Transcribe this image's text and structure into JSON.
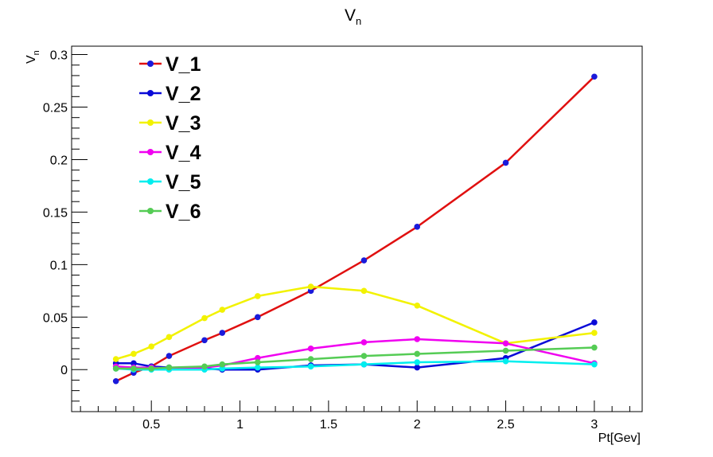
{
  "chart_data": {
    "type": "line",
    "title": "V",
    "title_sub": "n",
    "xlabel": "Pt[Gev]",
    "ylabel": "V",
    "ylabel_sub": "n",
    "xlim": [
      0.05,
      3.27
    ],
    "ylim": [
      -0.04,
      0.308
    ],
    "xticks": [
      0.5,
      1,
      1.5,
      2,
      2.5,
      3
    ],
    "xtick_labels": [
      "0.5",
      "1",
      "1.5",
      "2",
      "2.5",
      "3"
    ],
    "yticks": [
      0,
      0.05,
      0.1,
      0.15,
      0.2,
      0.25,
      0.3
    ],
    "ytick_labels": [
      "0",
      "0.05",
      "0.1",
      "0.15",
      "0.2",
      "0.25",
      "0.3"
    ],
    "grid": false,
    "legend_position": "top-left",
    "x": [
      0.3,
      0.4,
      0.5,
      0.6,
      0.8,
      0.9,
      1.1,
      1.4,
      1.7,
      2.0,
      2.5,
      3.0
    ],
    "series": [
      {
        "name": "V_1",
        "color": "#e01010",
        "marker_color": "#1a1adb",
        "values": [
          -0.011,
          -0.003,
          0.003,
          0.013,
          0.028,
          0.035,
          0.05,
          0.075,
          0.104,
          0.136,
          0.197,
          0.279
        ]
      },
      {
        "name": "V_2",
        "color": "#0a0ad8",
        "marker_color": "#0a0ad8",
        "values": [
          0.006,
          0.006,
          0.003,
          0.002,
          0.001,
          0.0,
          0.0,
          0.004,
          0.005,
          0.002,
          0.011,
          0.045
        ]
      },
      {
        "name": "V_3",
        "color": "#f2f200",
        "marker_color": "#f2f200",
        "values": [
          0.01,
          0.015,
          0.022,
          0.031,
          0.049,
          0.057,
          0.07,
          0.079,
          0.075,
          0.061,
          0.025,
          0.035
        ]
      },
      {
        "name": "V_4",
        "color": "#f000f0",
        "marker_color": "#f000f0",
        "values": [
          0.003,
          0.002,
          0.002,
          0.001,
          0.002,
          0.004,
          0.011,
          0.02,
          0.026,
          0.029,
          0.025,
          0.006
        ]
      },
      {
        "name": "V_5",
        "color": "#00eeee",
        "marker_color": "#00eeee",
        "values": [
          0.001,
          0.0,
          0.0,
          0.0,
          0.0,
          0.001,
          0.002,
          0.003,
          0.005,
          0.007,
          0.008,
          0.005
        ]
      },
      {
        "name": "V_6",
        "color": "#55cc55",
        "marker_color": "#55cc55",
        "values": [
          0.001,
          0.001,
          0.001,
          0.002,
          0.003,
          0.005,
          0.007,
          0.01,
          0.013,
          0.015,
          0.018,
          0.021
        ]
      }
    ]
  }
}
